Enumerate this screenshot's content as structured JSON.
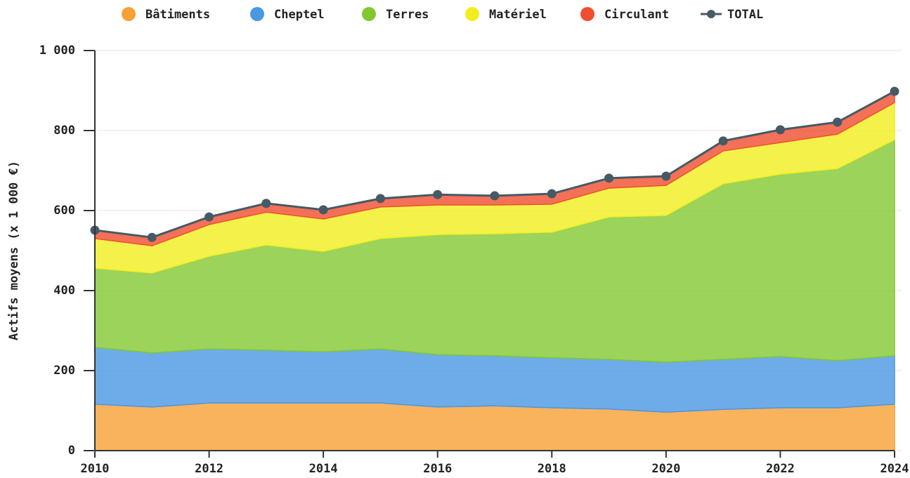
{
  "chart_data": {
    "type": "area",
    "stacked": true,
    "ylabel": "Actifs moyens (x 1 000 €)",
    "x": [
      2010,
      2011,
      2012,
      2013,
      2014,
      2015,
      2016,
      2017,
      2018,
      2019,
      2020,
      2021,
      2022,
      2023,
      2024
    ],
    "xlim": [
      2010,
      2024
    ],
    "xticks": [
      2010,
      2012,
      2014,
      2016,
      2018,
      2020,
      2022,
      2024
    ],
    "ylim": [
      0,
      1000
    ],
    "yticks": [
      0,
      200,
      400,
      600,
      800,
      {
        "value": 1000,
        "label": "1 000"
      }
    ],
    "grid": true,
    "legend": "top",
    "series": [
      {
        "name": "Bâtiments",
        "color": "#f7a035",
        "values": [
          116,
          109,
          119,
          119,
          119,
          119,
          109,
          112,
          107,
          104,
          96,
          103,
          107,
          107,
          116
        ]
      },
      {
        "name": "Cheptel",
        "color": "#4a97e4",
        "values": [
          142,
          135,
          135,
          132,
          128,
          135,
          131,
          125,
          125,
          124,
          125,
          125,
          128,
          118,
          121
        ]
      },
      {
        "name": "Terres",
        "color": "#82c832",
        "values": [
          198,
          200,
          232,
          263,
          251,
          276,
          300,
          305,
          314,
          356,
          367,
          439,
          456,
          480,
          540
        ]
      },
      {
        "name": "Matériel",
        "color": "#f2ee1e",
        "values": [
          74,
          68,
          79,
          82,
          81,
          79,
          74,
          72,
          70,
          72,
          75,
          82,
          79,
          86,
          93
        ]
      },
      {
        "name": "Circulant",
        "color": "#f04e30",
        "values": [
          21,
          21,
          19,
          22,
          23,
          21,
          26,
          23,
          26,
          25,
          23,
          25,
          32,
          30,
          28
        ]
      },
      {
        "name": "TOTAL",
        "type": "line",
        "color": "#455a64",
        "values": [
          551,
          533,
          584,
          618,
          602,
          630,
          640,
          637,
          642,
          681,
          686,
          774,
          802,
          821,
          898
        ]
      }
    ]
  }
}
